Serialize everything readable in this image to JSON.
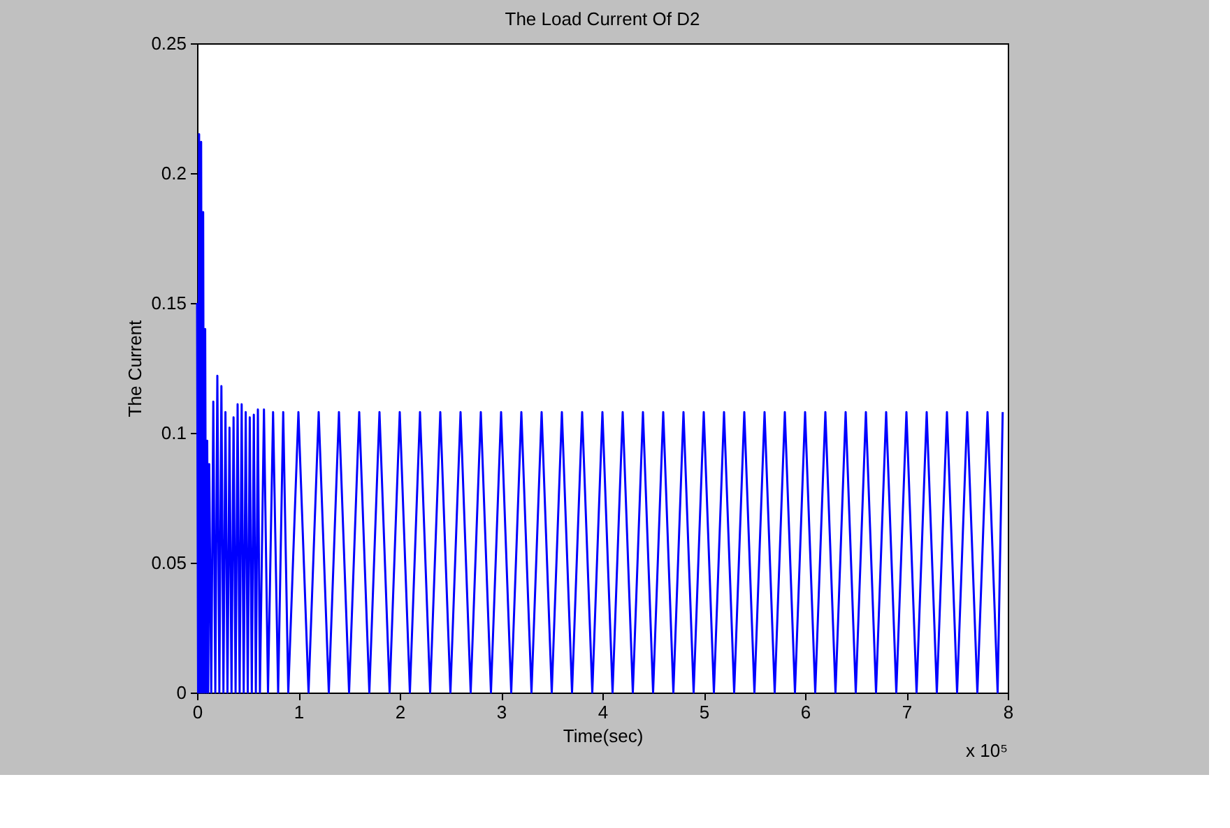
{
  "chart_data": {
    "type": "line",
    "title": "The Load Current Of D2",
    "xlabel": "Time(sec)",
    "ylabel": "The Current",
    "annotations": [
      "x 10⁵"
    ],
    "x": [
      0,
      0.01,
      0.02,
      0.03,
      0.04,
      0.05,
      0.06,
      0.07,
      0.08,
      0.09,
      0.1,
      0.11,
      0.12,
      0.14,
      0.16,
      0.18,
      0.2,
      0.22,
      0.24,
      0.26,
      0.28,
      0.3,
      0.32,
      0.34,
      0.36,
      0.38,
      0.4,
      0.42,
      0.44,
      0.46,
      0.48,
      0.5,
      0.52,
      0.54,
      0.56,
      0.58,
      0.6,
      0.62,
      0.66,
      0.7,
      0.75,
      0.8,
      0.85,
      0.9,
      1.0,
      1.1,
      1.2,
      1.3,
      1.4,
      1.5,
      1.6,
      1.7,
      1.8,
      1.9,
      2.0,
      2.1,
      2.2,
      2.3,
      2.4,
      2.5,
      2.6,
      2.7,
      2.8,
      2.9,
      3.0,
      3.1,
      3.2,
      3.3,
      3.4,
      3.5,
      3.6,
      3.7,
      3.8,
      3.9,
      4.0,
      4.1,
      4.2,
      4.3,
      4.4,
      4.5,
      4.6,
      4.7,
      4.8,
      4.9,
      5.0,
      5.1,
      5.2,
      5.3,
      5.4,
      5.5,
      5.6,
      5.7,
      5.8,
      5.9,
      6.0,
      6.1,
      6.2,
      6.3,
      6.4,
      6.5,
      6.6,
      6.7,
      6.8,
      6.9,
      7.0,
      7.1,
      7.2,
      7.3,
      7.4,
      7.5,
      7.6,
      7.7,
      7.8,
      7.9,
      7.95
    ],
    "series": [
      {
        "color": "#0000ff",
        "values": [
          0.15,
          0,
          0.215,
          0,
          0.212,
          0,
          0.185,
          0,
          0.14,
          0,
          0.097,
          0,
          0.088,
          0,
          0.112,
          0,
          0.122,
          0,
          0.118,
          0,
          0.108,
          0,
          0.102,
          0,
          0.106,
          0,
          0.111,
          0,
          0.111,
          0,
          0.108,
          0,
          0.106,
          0,
          0.107,
          0,
          0.109,
          0,
          0.109,
          0,
          0.108,
          0,
          0.108,
          0,
          0.108,
          0,
          0.108,
          0,
          0.108,
          0,
          0.108,
          0,
          0.108,
          0,
          0.108,
          0,
          0.108,
          0,
          0.108,
          0,
          0.108,
          0,
          0.108,
          0,
          0.108,
          0,
          0.108,
          0,
          0.108,
          0,
          0.108,
          0,
          0.108,
          0,
          0.108,
          0,
          0.108,
          0,
          0.108,
          0,
          0.108,
          0,
          0.108,
          0,
          0.108,
          0,
          0.108,
          0,
          0.108,
          0,
          0.108,
          0,
          0.108,
          0,
          0.108,
          0,
          0.108,
          0,
          0.108,
          0,
          0.108,
          0,
          0.108,
          0,
          0.108,
          0,
          0.108,
          0,
          0.108,
          0,
          0.108,
          0,
          0.108,
          0,
          0.108
        ]
      }
    ],
    "xlim": [
      0,
      8
    ],
    "xticks": [
      0,
      1,
      2,
      3,
      4,
      5,
      6,
      7,
      8
    ],
    "ylim": [
      0,
      0.25
    ],
    "yticks": [
      0,
      0.05,
      0.1,
      0.15,
      0.2,
      0.25
    ],
    "grid": false
  }
}
